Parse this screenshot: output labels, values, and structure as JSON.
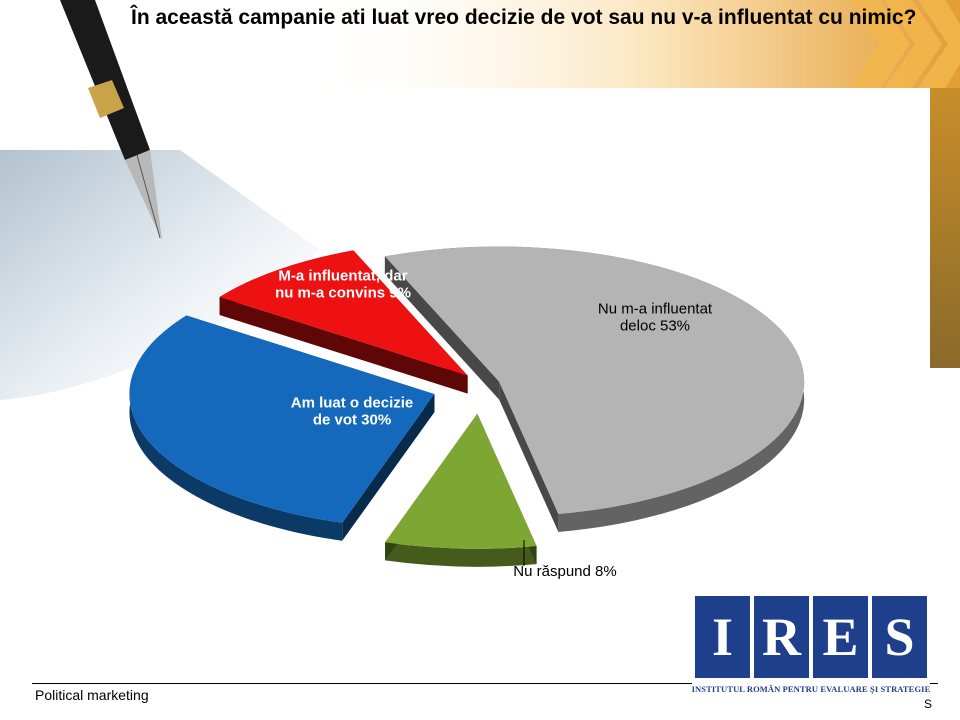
{
  "slide": {
    "title": "În această campanie ati luat vreo decizie de vot sau nu v-a influentat cu nimic?",
    "footer": "Political marketing",
    "footer_right": "S"
  },
  "logo": {
    "letters": [
      "I",
      "R",
      "E",
      "S"
    ],
    "caption": "INSTITUTUL ROMÂN PENTRU EVALUARE ȘI STRATEGIE"
  },
  "colors": {
    "logo_blue": "#1d3f8c",
    "slice_gray": "#b4b4b4",
    "slice_green": "#7ea632",
    "slice_blue": "#1469bc",
    "slice_red": "#ee1111",
    "banner_gold": "#e0a23c"
  },
  "chart_data": {
    "type": "pie",
    "style": "3d-exploded",
    "labels_inside": true,
    "slices": [
      {
        "label": "Nu m-a influentat deloc",
        "value": 53,
        "label_text": "Nu m-a influentat deloc 53%",
        "color": "#b4b4b4",
        "label_color": "#000000"
      },
      {
        "label": "Nu răspund",
        "value": 8,
        "label_text": "Nu răspund 8%",
        "color": "#7ea632",
        "label_color": "#000000"
      },
      {
        "label": "Am luat o decizie de vot",
        "value": 30,
        "label_text": "Am luat o decizie de vot 30%",
        "color": "#1469bc",
        "label_color": "#ffffff"
      },
      {
        "label": "M-a influentat, dar nu m-a convins",
        "value": 9,
        "label_text": "M-a influentat, dar nu m-a convins 9%",
        "color": "#ee1111",
        "label_color": "#ffffff"
      }
    ]
  }
}
